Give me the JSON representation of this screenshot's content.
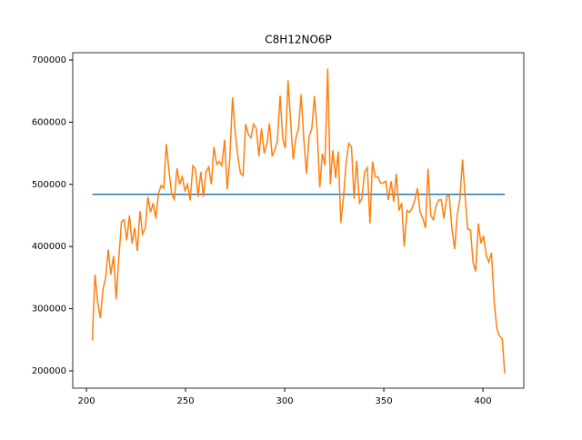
{
  "chart_data": {
    "type": "line",
    "title": "C8H12NO6P",
    "xlim": [
      193.1,
      420.6
    ],
    "ylim": [
      172200,
      711700
    ],
    "xticks": [
      200,
      250,
      300,
      350,
      400
    ],
    "yticks": [
      200000,
      300000,
      400000,
      500000,
      600000,
      700000
    ],
    "series": [
      {
        "color": "#1f77b4",
        "x": [
          203,
          411
        ],
        "values": [
          484000,
          484000
        ]
      },
      {
        "color": "#ff7f0e",
        "x": [
          203,
          204.3,
          205.7,
          207,
          208.3,
          209.7,
          211,
          212.3,
          213.7,
          215,
          216.3,
          217.7,
          219,
          220.3,
          221.7,
          223,
          224.3,
          225.7,
          227,
          228.3,
          229.7,
          231,
          232.3,
          233.7,
          235,
          236.3,
          237.7,
          239,
          240.3,
          241.7,
          243,
          244.3,
          245.7,
          247,
          248.3,
          249.7,
          251,
          252.3,
          253.7,
          255,
          256.3,
          257.7,
          259,
          260.3,
          261.7,
          263,
          264.3,
          265.7,
          267,
          268.3,
          269.7,
          271,
          272.3,
          273.7,
          275,
          276.3,
          277.7,
          279,
          280.3,
          281.7,
          283,
          284.3,
          285.7,
          287,
          288.3,
          289.7,
          291,
          292.3,
          293.7,
          295,
          296.3,
          297.7,
          299,
          300.3,
          301.7,
          303,
          304.3,
          305.7,
          307,
          308.3,
          309.7,
          311,
          312.3,
          313.7,
          315,
          316.3,
          317.7,
          319,
          320.3,
          321.7,
          323,
          324.3,
          325.7,
          327,
          328.3,
          329.7,
          331,
          332.3,
          333.7,
          335,
          336.3,
          337.7,
          339,
          340.3,
          341.7,
          343,
          344.3,
          345.7,
          347,
          348.3,
          349.7,
          351,
          352.3,
          353.7,
          355,
          356.3,
          357.7,
          359,
          360.3,
          361.7,
          363,
          364.3,
          365.7,
          367,
          368.3,
          369.7,
          371,
          372.3,
          373.7,
          375,
          376.3,
          377.7,
          379,
          380.3,
          381.7,
          383,
          384.3,
          385.7,
          387,
          388.3,
          389.7,
          391,
          392.3,
          393.7,
          395,
          396.3,
          397.7,
          399,
          400.3,
          401.7,
          403,
          404.3,
          405.7,
          407,
          408.3,
          409.7,
          411
        ],
        "values": [
          249000,
          355000,
          310000,
          285000,
          330000,
          350000,
          395000,
          355000,
          385000,
          315000,
          380000,
          440000,
          443000,
          410000,
          450000,
          405000,
          430000,
          393000,
          457000,
          420000,
          430000,
          480000,
          455000,
          470000,
          445000,
          485000,
          498000,
          494000,
          565000,
          520000,
          485000,
          476000,
          526000,
          500000,
          512000,
          490000,
          500000,
          474000,
          530000,
          524000,
          480000,
          520000,
          480000,
          520000,
          528000,
          500000,
          560000,
          532000,
          537000,
          530000,
          572000,
          492000,
          540000,
          640000,
          585000,
          547000,
          518000,
          514000,
          597000,
          580000,
          575000,
          597000,
          590000,
          545000,
          590000,
          550000,
          565000,
          598000,
          545000,
          555000,
          570000,
          643000,
          574000,
          558000,
          667000,
          600000,
          540000,
          575000,
          590000,
          645000,
          570000,
          517000,
          577000,
          590000,
          642000,
          590000,
          495000,
          550000,
          530000,
          686000,
          500000,
          555000,
          510000,
          553000,
          438000,
          480000,
          535000,
          566000,
          560000,
          477000,
          538000,
          470000,
          478000,
          520000,
          527000,
          437000,
          537000,
          512000,
          512000,
          502000,
          502000,
          505000,
          475000,
          505000,
          472000,
          517000,
          458000,
          470000,
          400000,
          458000,
          455000,
          462000,
          475000,
          494000,
          455000,
          445000,
          430000,
          525000,
          450000,
          443000,
          465000,
          475000,
          475000,
          445000,
          480000,
          483000,
          430000,
          396000,
          450000,
          475000,
          540000,
          480000,
          428000,
          427000,
          375000,
          360000,
          437000,
          405000,
          417000,
          385000,
          375000,
          390000,
          310000,
          268000,
          256000,
          252000,
          196000
        ]
      }
    ]
  }
}
